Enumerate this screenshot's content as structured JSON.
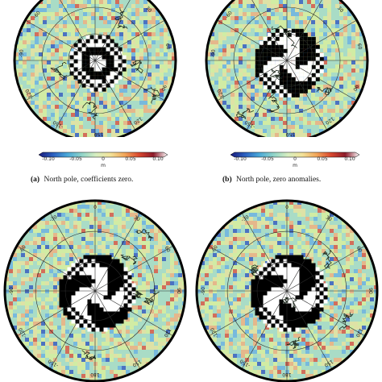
{
  "panels": [
    {
      "id": "a",
      "pole": "north",
      "caption_label": "(a)",
      "caption_text": "North pole, coefficients zero.",
      "lon_labels": [
        "-150",
        "-120",
        "-90",
        "-60",
        "-30",
        "0",
        "30",
        "60",
        "90",
        "120",
        "150"
      ],
      "central_pattern": "ring"
    },
    {
      "id": "b",
      "pole": "north",
      "caption_label": "(b)",
      "caption_text": "North pole, zero anomalies.",
      "lon_labels": [
        "-150",
        "-120",
        "-90",
        "-60",
        "-30",
        "0",
        "30",
        "60",
        "90",
        "120",
        "150"
      ],
      "central_pattern": "lobed"
    },
    {
      "id": "c",
      "pole": "south",
      "lon_labels": [
        "-30",
        "0",
        "30",
        "60",
        "90",
        "120",
        "150",
        "180",
        "-150",
        "-120",
        "-90",
        "-60"
      ],
      "central_pattern": "lobed-large"
    },
    {
      "id": "d",
      "pole": "south",
      "lon_labels": [
        "-30",
        "0",
        "30",
        "60",
        "90",
        "120",
        "150",
        "180",
        "-150",
        "-120",
        "-90",
        "-60"
      ],
      "central_pattern": "lobed-large"
    }
  ],
  "colorbar": {
    "ticks": [
      "-0.10",
      "-0.05",
      "0",
      "0.05",
      "0.10"
    ],
    "unit": "m",
    "colors": [
      "#1a1a7a",
      "#2b5fbf",
      "#4aa8d8",
      "#8fd3c8",
      "#d7eec0",
      "#f3e39a",
      "#f2a65a",
      "#d9482f",
      "#8c1a2a",
      "#ffffff"
    ]
  },
  "colors": {
    "field_base": "#a9dcc6",
    "field_alt": "#d8ef9e",
    "coast": "#1f2a1f",
    "grid": "#2a2a2a"
  }
}
